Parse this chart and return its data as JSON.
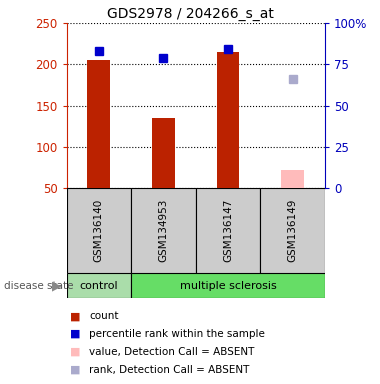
{
  "title": "GDS2978 / 204266_s_at",
  "samples": [
    "GSM136140",
    "GSM134953",
    "GSM136147",
    "GSM136149"
  ],
  "bar_values": [
    205,
    135,
    215,
    72
  ],
  "bar_colors": [
    "#bb2200",
    "#bb2200",
    "#bb2200",
    "#ffbbbb"
  ],
  "bar_absent": [
    false,
    false,
    false,
    true
  ],
  "percentile_values": [
    83,
    79,
    84,
    66
  ],
  "percentile_colors": [
    "#0000cc",
    "#0000cc",
    "#0000cc",
    "#aaaacc"
  ],
  "percentile_absent": [
    false,
    false,
    false,
    true
  ],
  "ylim_left": [
    50,
    250
  ],
  "ylim_right": [
    0,
    100
  ],
  "yticks_left": [
    50,
    100,
    150,
    200,
    250
  ],
  "yticks_right": [
    0,
    25,
    50,
    75,
    100
  ],
  "ytick_labels_right": [
    "0",
    "25",
    "50",
    "75",
    "100%"
  ],
  "legend_items": [
    {
      "label": "count",
      "color": "#bb2200"
    },
    {
      "label": "percentile rank within the sample",
      "color": "#0000cc"
    },
    {
      "label": "value, Detection Call = ABSENT",
      "color": "#ffbbbb"
    },
    {
      "label": "rank, Detection Call = ABSENT",
      "color": "#aaaacc"
    }
  ],
  "disease_state_label": "disease state",
  "axis_color_left": "#cc2200",
  "axis_color_right": "#0000bb",
  "grid_color": "#000000",
  "sample_bg": "#cccccc",
  "control_color": "#aaddaa",
  "ms_color": "#66dd66"
}
